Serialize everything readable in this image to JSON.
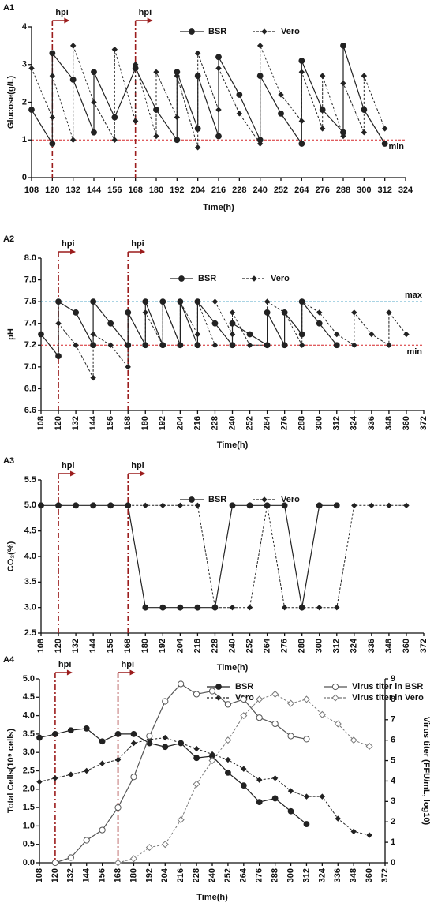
{
  "chart_data": [
    {
      "type": "line",
      "title": "A1",
      "xlabel": "Time(h)",
      "ylabel": "Glucose(g/L)",
      "xlim": [
        108,
        324
      ],
      "xticks": [
        108,
        120,
        132,
        144,
        156,
        168,
        180,
        192,
        204,
        216,
        228,
        240,
        252,
        264,
        276,
        288,
        300,
        312,
        324
      ],
      "ylim": [
        0,
        4
      ],
      "yticks": [
        0,
        1,
        2,
        3,
        4
      ],
      "legend": "top",
      "series": [
        {
          "name": "BSR",
          "color": "#222222",
          "line_style": "solid",
          "marker": "circle",
          "x": [
            108,
            120,
            120,
            132,
            144,
            144,
            156,
            168,
            180,
            192,
            192,
            204,
            204,
            216,
            216,
            228,
            240,
            240,
            252,
            264,
            264,
            276,
            288,
            288,
            300,
            312
          ],
          "values": [
            1.8,
            0.9,
            3.3,
            2.6,
            1.2,
            2.8,
            1.6,
            2.9,
            1.8,
            1.0,
            2.8,
            1.3,
            2.7,
            1.1,
            3.2,
            2.2,
            1.0,
            2.7,
            1.7,
            0.9,
            3.1,
            1.8,
            1.2,
            3.5,
            1.8,
            0.9
          ]
        },
        {
          "name": "Vero",
          "color": "#222222",
          "line_style": "dashed",
          "marker": "diamond",
          "x": [
            108,
            120,
            120,
            132,
            132,
            144,
            156,
            156,
            168,
            168,
            180,
            180,
            192,
            192,
            204,
            204,
            216,
            216,
            228,
            240,
            240,
            252,
            264,
            264,
            276,
            276,
            288,
            288,
            300,
            300,
            312
          ],
          "values": [
            2.9,
            1.6,
            2.7,
            1.0,
            3.5,
            2.0,
            1.0,
            3.4,
            1.5,
            3.0,
            1.1,
            2.8,
            1.6,
            2.7,
            0.8,
            3.3,
            1.8,
            2.9,
            1.7,
            0.9,
            3.5,
            2.2,
            1.5,
            2.8,
            1.3,
            2.7,
            1.1,
            2.5,
            1.2,
            2.7,
            1.3
          ]
        }
      ],
      "annotations": [
        {
          "text": "hpi",
          "x": 120
        },
        {
          "text": "hpi",
          "x": 168
        }
      ],
      "hlines": [
        {
          "value": 1,
          "label": "min",
          "color": "#d62728"
        }
      ]
    },
    {
      "type": "line",
      "title": "A2",
      "xlabel": "Time(h)",
      "ylabel": "pH",
      "xlim": [
        108,
        372
      ],
      "xticks": [
        108,
        120,
        132,
        144,
        156,
        168,
        180,
        192,
        204,
        216,
        228,
        240,
        252,
        264,
        276,
        288,
        300,
        312,
        324,
        336,
        348,
        360,
        372
      ],
      "ylim": [
        6.6,
        8.0
      ],
      "yticks": [
        6.6,
        6.8,
        {
          "value": 7,
          "label": "7.0"
        },
        7.2,
        7.4,
        7.6,
        7.8,
        {
          "value": 8,
          "label": "8.0"
        }
      ],
      "legend": "top",
      "series": [
        {
          "name": "BSR",
          "color": "#222222",
          "line_style": "solid",
          "marker": "circle",
          "x": [
            108,
            120,
            120,
            132,
            144,
            144,
            156,
            168,
            168,
            180,
            180,
            192,
            192,
            204,
            204,
            216,
            216,
            228,
            240,
            240,
            252,
            264,
            264,
            276,
            276,
            288,
            288,
            300,
            312
          ],
          "values": [
            7.3,
            7.1,
            7.6,
            7.5,
            7.2,
            7.6,
            7.4,
            7.2,
            7.5,
            7.2,
            7.6,
            7.2,
            7.6,
            7.2,
            7.6,
            7.2,
            7.6,
            7.4,
            7.2,
            7.4,
            7.3,
            7.2,
            7.5,
            7.2,
            7.5,
            7.3,
            7.6,
            7.4,
            7.2
          ]
        },
        {
          "name": "Vero",
          "color": "#222222",
          "line_style": "dashed",
          "marker": "diamond",
          "x": [
            120,
            132,
            144,
            144,
            156,
            168,
            168,
            180,
            180,
            192,
            192,
            204,
            204,
            216,
            216,
            228,
            228,
            240,
            240,
            252,
            264,
            264,
            276,
            288,
            288,
            300,
            312,
            324,
            324,
            336,
            348,
            348,
            360
          ],
          "values": [
            7.4,
            7.2,
            6.9,
            7.3,
            7.2,
            7.0,
            7.5,
            7.2,
            7.5,
            7.2,
            7.6,
            7.2,
            7.6,
            7.3,
            7.6,
            7.2,
            7.6,
            7.3,
            7.5,
            7.2,
            7.2,
            7.6,
            7.5,
            7.2,
            7.6,
            7.5,
            7.3,
            7.2,
            7.5,
            7.3,
            7.2,
            7.5,
            7.3
          ]
        }
      ],
      "annotations": [
        {
          "text": "hpi",
          "x": 120
        },
        {
          "text": "hpi",
          "x": 168
        }
      ],
      "hlines": [
        {
          "value": 7.6,
          "label": "max",
          "color": "#1f8fb8"
        },
        {
          "value": 7.2,
          "label": "min",
          "color": "#d62728"
        }
      ]
    },
    {
      "type": "line",
      "title": "A3",
      "xlabel": "Time(h)",
      "ylabel": "CO₂(%)",
      "xlim": [
        108,
        372
      ],
      "xticks": [
        108,
        120,
        132,
        144,
        156,
        168,
        180,
        192,
        204,
        216,
        228,
        240,
        252,
        264,
        276,
        288,
        300,
        312,
        324,
        336,
        348,
        360,
        372
      ],
      "ylim": [
        2.5,
        5.5
      ],
      "yticks": [
        2.5,
        {
          "value": 3,
          "label": "3.0"
        },
        3.5,
        {
          "value": 4,
          "label": "4.0"
        },
        4.5,
        {
          "value": 5,
          "label": "5.0"
        },
        5.5
      ],
      "legend": "top",
      "series": [
        {
          "name": "BSR",
          "color": "#222222",
          "line_style": "solid",
          "marker": "circle",
          "x": [
            108,
            120,
            132,
            144,
            156,
            168,
            180,
            192,
            204,
            216,
            228,
            240,
            252,
            264,
            276,
            288,
            300,
            312
          ],
          "values": [
            5,
            5,
            5,
            5,
            5,
            5,
            3,
            3,
            3,
            3,
            3,
            5,
            5,
            5,
            5,
            3,
            5,
            5
          ]
        },
        {
          "name": "Vero",
          "color": "#222222",
          "line_style": "dashed",
          "marker": "diamond",
          "x": [
            168,
            180,
            192,
            204,
            216,
            228,
            240,
            252,
            264,
            276,
            288,
            300,
            312,
            324,
            336,
            348,
            360
          ],
          "values": [
            5,
            5,
            5,
            5,
            5,
            3,
            3,
            3,
            5,
            3,
            3,
            3,
            3,
            5,
            5,
            5,
            5
          ]
        }
      ],
      "annotations": [
        {
          "text": "hpi",
          "x": 120
        },
        {
          "text": "hpi",
          "x": 168
        }
      ],
      "hlines": []
    },
    {
      "type": "line",
      "title": "A4",
      "xlabel": "Time(h)",
      "ylabel": "Total Cells(10⁹ cells)",
      "y2label": "Virus titer (FFU/mL, log10)",
      "xlim": [
        108,
        372
      ],
      "xticks": [
        108,
        120,
        132,
        144,
        156,
        168,
        180,
        192,
        204,
        216,
        228,
        240,
        252,
        264,
        276,
        288,
        300,
        312,
        324,
        336,
        348,
        360,
        372
      ],
      "ylim": [
        0,
        5
      ],
      "yticks": [
        {
          "value": 0,
          "label": "0.0"
        },
        0.5,
        {
          "value": 1,
          "label": "1.0"
        },
        1.5,
        {
          "value": 2,
          "label": "2.0"
        },
        2.5,
        {
          "value": 3,
          "label": "3.0"
        },
        3.5,
        {
          "value": 4,
          "label": "4.0"
        },
        4.5,
        {
          "value": 5,
          "label": "5.0"
        }
      ],
      "y2lim": [
        0,
        9
      ],
      "y2ticks": [
        0,
        1,
        2,
        3,
        4,
        5,
        6,
        7,
        8,
        9
      ],
      "legend": "top",
      "series": [
        {
          "name": "BSR",
          "color": "#222222",
          "line_style": "solid",
          "marker": "circle",
          "x": [
            108,
            120,
            132,
            144,
            156,
            168,
            180,
            192,
            204,
            216,
            228,
            240,
            252,
            264,
            276,
            288,
            300,
            312
          ],
          "values": [
            3.4,
            3.5,
            3.6,
            3.65,
            3.3,
            3.5,
            3.5,
            3.25,
            3.15,
            3.25,
            2.85,
            2.9,
            2.45,
            2.1,
            1.65,
            1.75,
            1.4,
            1.05
          ]
        },
        {
          "name": "Vero",
          "color": "#222222",
          "line_style": "dashed",
          "marker": "diamond",
          "x": [
            108,
            120,
            132,
            144,
            156,
            168,
            180,
            192,
            204,
            216,
            228,
            240,
            252,
            264,
            276,
            288,
            300,
            312,
            324,
            336,
            348,
            360
          ],
          "values": [
            2.2,
            2.3,
            2.4,
            2.5,
            2.7,
            2.8,
            3.25,
            3.35,
            3.4,
            3.25,
            3.1,
            2.95,
            2.8,
            2.55,
            2.25,
            2.3,
            1.95,
            1.8,
            1.8,
            1.2,
            0.85,
            0.75
          ]
        },
        {
          "name": "Virus titer in BSR",
          "color": "#555555",
          "line_style": "solid",
          "marker": "open-circle",
          "axis": "y2",
          "x": [
            120,
            132,
            144,
            156,
            168,
            180,
            192,
            204,
            216,
            228,
            240,
            252,
            264,
            276,
            288,
            300,
            312
          ],
          "values": [
            0,
            0.25,
            1.1,
            1.6,
            2.7,
            4.2,
            6.2,
            7.9,
            8.75,
            8.25,
            8.4,
            7.75,
            8.0,
            7.1,
            6.8,
            6.2,
            6.05
          ]
        },
        {
          "name": "Virus titer in Vero",
          "color": "#777777",
          "line_style": "dashed",
          "marker": "open-diamond",
          "axis": "y2",
          "x": [
            168,
            180,
            192,
            204,
            216,
            228,
            240,
            252,
            264,
            276,
            288,
            300,
            312,
            324,
            336,
            348,
            360
          ],
          "values": [
            0,
            0.2,
            0.75,
            0.9,
            2.1,
            3.85,
            5.0,
            6.0,
            7.2,
            8.0,
            8.25,
            7.8,
            8.0,
            7.25,
            6.8,
            6.0,
            5.7
          ]
        }
      ],
      "annotations": [
        {
          "text": "hpi",
          "x": 120
        },
        {
          "text": "hpi",
          "x": 168
        }
      ],
      "hlines": []
    }
  ]
}
